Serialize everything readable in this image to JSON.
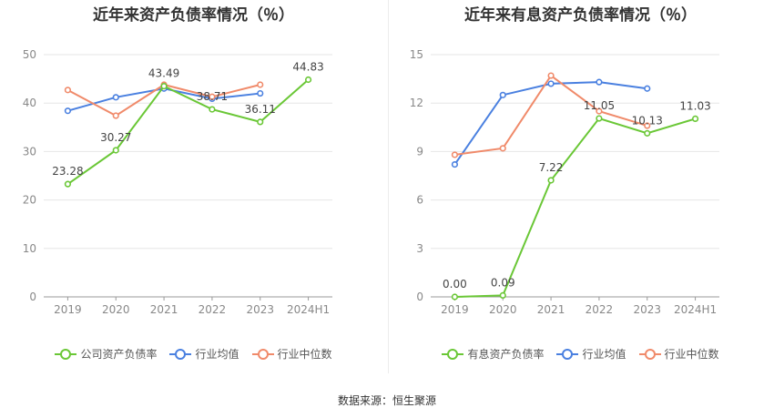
{
  "charts": [
    {
      "title": "近年来资产负债率情况（％）",
      "legend": [
        {
          "label": "公司资产负债率",
          "color": "#6ac736"
        },
        {
          "label": "行业均值",
          "color": "#4a80e0"
        },
        {
          "label": "行业中位数",
          "color": "#f08a6a"
        }
      ]
    },
    {
      "title": "近年来有息资产负债率情况（％）",
      "legend": [
        {
          "label": "有息资产负债率",
          "color": "#6ac736"
        },
        {
          "label": "行业均值",
          "color": "#4a80e0"
        },
        {
          "label": "行业中位数",
          "color": "#f08a6a"
        }
      ]
    }
  ],
  "source": "数据来源：恒生聚源",
  "chart_data": [
    {
      "type": "line",
      "title": "近年来资产负债率情况（％）",
      "categories": [
        "2019",
        "2020",
        "2021",
        "2022",
        "2023",
        "2024H1"
      ],
      "ylim": [
        0,
        50
      ],
      "yticks": [
        "0",
        "10",
        "20",
        "30",
        "40",
        "50"
      ],
      "grid": true,
      "legend_position": "bottom",
      "series": [
        {
          "name": "公司资产负债率",
          "color": "#6ac736",
          "values": [
            23.28,
            30.27,
            43.49,
            38.71,
            36.11,
            44.83
          ],
          "labels": [
            "23.28",
            "30.27",
            "43.49",
            "38.71",
            "36.11",
            "44.83"
          ]
        },
        {
          "name": "行业均值",
          "color": "#4a80e0",
          "values": [
            38.4,
            41.2,
            43.0,
            40.9,
            42.0,
            null
          ]
        },
        {
          "name": "行业中位数",
          "color": "#f08a6a",
          "values": [
            42.7,
            37.4,
            43.8,
            41.3,
            43.8,
            null
          ]
        }
      ]
    },
    {
      "type": "line",
      "title": "近年来有息资产负债率情况（％）",
      "categories": [
        "2019",
        "2020",
        "2021",
        "2022",
        "2023",
        "2024H1"
      ],
      "ylim": [
        0,
        15
      ],
      "yticks": [
        "0",
        "3",
        "6",
        "9",
        "12",
        "15"
      ],
      "grid": true,
      "legend_position": "bottom",
      "series": [
        {
          "name": "有息资产负债率",
          "color": "#6ac736",
          "values": [
            0.0,
            0.09,
            7.22,
            11.05,
            10.13,
            11.03
          ],
          "labels": [
            "0.00",
            "0.09",
            "7.22",
            "11.05",
            "10.13",
            "11.03"
          ]
        },
        {
          "name": "行业均值",
          "color": "#4a80e0",
          "values": [
            8.2,
            12.5,
            13.2,
            13.3,
            12.9,
            null
          ]
        },
        {
          "name": "行业中位数",
          "color": "#f08a6a",
          "values": [
            8.8,
            9.2,
            13.7,
            11.5,
            10.6,
            null
          ]
        }
      ]
    }
  ]
}
